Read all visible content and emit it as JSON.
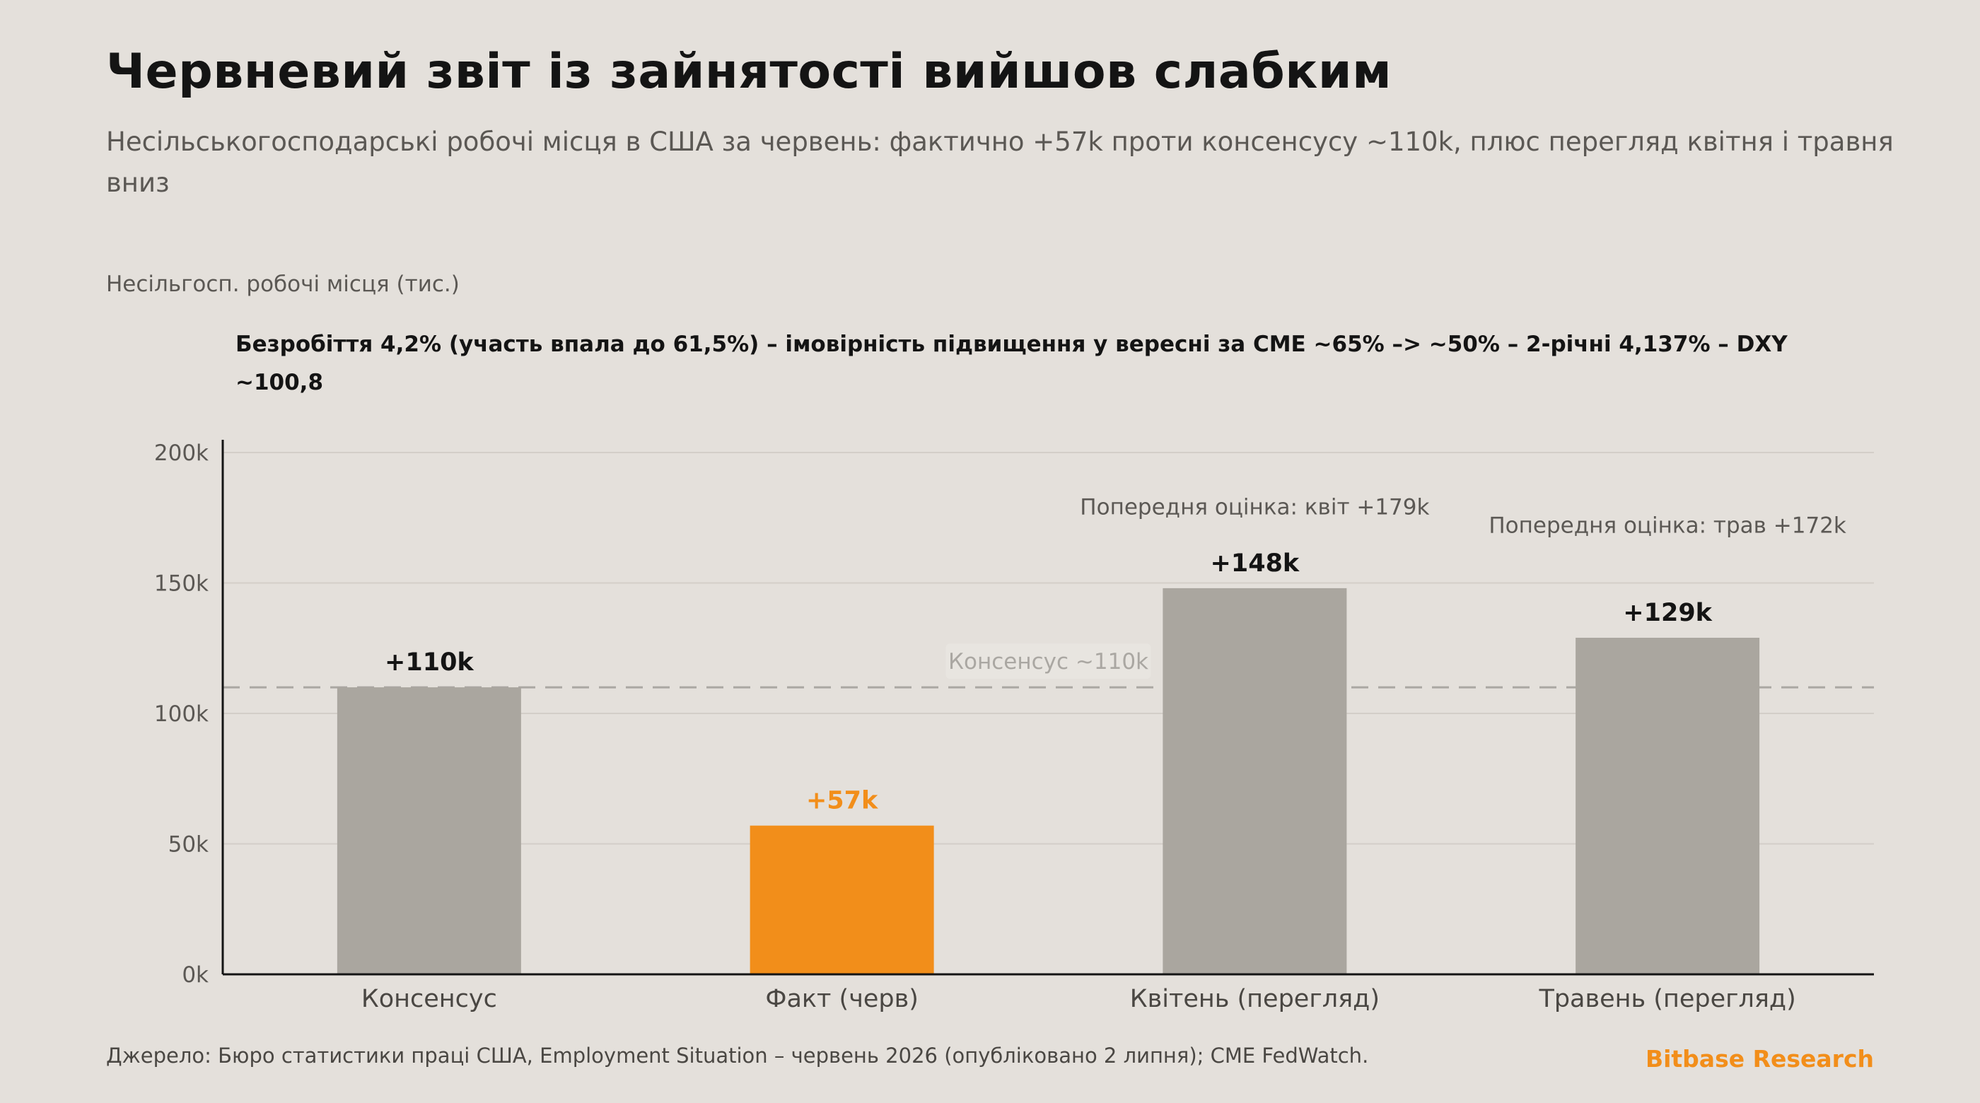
{
  "header": {
    "title": "Червневий звіт із зайнятості вийшов слабким",
    "subtitle": "Несільськогосподарські робочі місця в США за червень: фактично +57k проти консенсусу ~110k, плюс перегляд квітня і травня вниз"
  },
  "chart_data": {
    "type": "bar",
    "ylabel": "Несільгосп. робочі місця (тис.)",
    "annotation": "Безробіття 4,2% (участь впала до 61,5%) – імовірність підвищення у вересні за CME ~65% –> ~50% – 2-річні 4,137% – DXY ~100,8",
    "categories": [
      "Консенсус",
      "Факт (черв)",
      "Квітень (перегляд)",
      "Травень (перегляд)"
    ],
    "values": [
      110,
      57,
      148,
      129
    ],
    "value_labels": [
      "+110k",
      "+57k",
      "+148k",
      "+129k"
    ],
    "highlight_index": 1,
    "ylim": [
      0,
      200
    ],
    "yticks": [
      0,
      50,
      100,
      150,
      200
    ],
    "ytick_labels": [
      "0k",
      "50k",
      "100k",
      "150k",
      "200k"
    ],
    "grid": true,
    "reference_line": {
      "value": 110,
      "label": "Консенсус ~110k"
    },
    "prior_estimates": [
      {
        "category_index": 2,
        "value": 179,
        "label": "Попередня оцінка: квіт +179k"
      },
      {
        "category_index": 3,
        "value": 172,
        "label": "Попередня оцінка: трав +172k"
      }
    ],
    "colors": {
      "bar": "#aaa69f",
      "highlight": "#f28e1a",
      "grid": "#d3cec8",
      "reference": "#aaa7a2",
      "axis": "#141414"
    }
  },
  "footer": {
    "source": "Джерело: Бюро статистики праці США, Employment Situation – червень 2026 (опубліковано 2 липня); CME FedWatch.",
    "brand": "Bitbase Research"
  }
}
